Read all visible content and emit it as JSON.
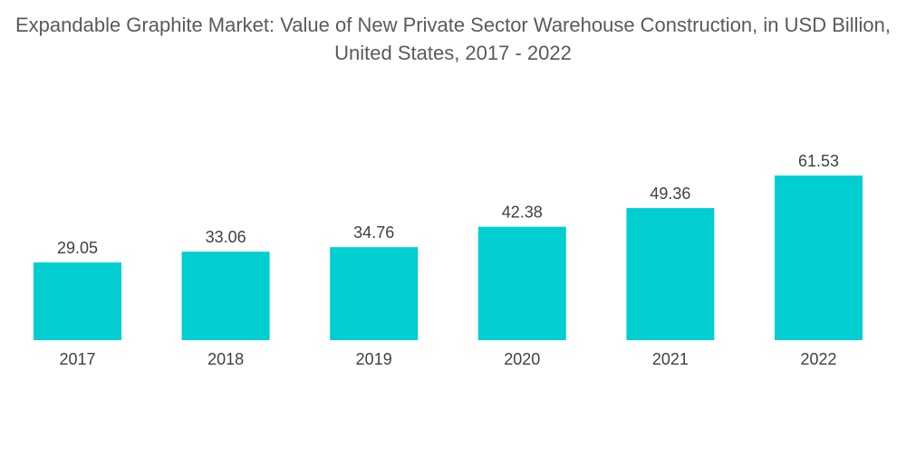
{
  "chart_data": {
    "type": "bar",
    "title": "Expandable Graphite Market: Value of New Private Sector Warehouse Construction, in USD Billion, United States, 2017 - 2022",
    "xlabel": "",
    "ylabel": "",
    "categories": [
      "2017",
      "2018",
      "2019",
      "2020",
      "2021",
      "2022"
    ],
    "values": [
      29.05,
      33.06,
      34.76,
      42.38,
      49.36,
      61.53
    ],
    "value_labels": [
      "29.05",
      "33.06",
      "34.76",
      "42.38",
      "49.36",
      "61.53"
    ],
    "ylim": [
      0,
      61.53
    ],
    "grid": false,
    "legend": "none",
    "bar_color": "#00ced1"
  }
}
